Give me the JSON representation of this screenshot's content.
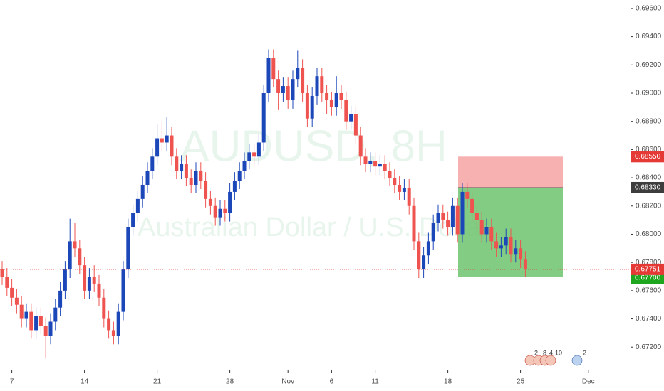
{
  "chart_data": {
    "type": "candlestick",
    "watermark": {
      "symbol": "AUDUSD, 8H",
      "name": "Australian Dollar / U.S. Dollar"
    },
    "up_color": "#1c47b8",
    "down_color": "#ef5350",
    "ylim": [
      0.6704,
      0.6966
    ],
    "yticks": [
      {
        "value": 0.672,
        "label": "0.67200"
      },
      {
        "value": 0.674,
        "label": "0.67400"
      },
      {
        "value": 0.676,
        "label": "0.67600"
      },
      {
        "value": 0.678,
        "label": "0.67800"
      },
      {
        "value": 0.68,
        "label": "0.68000"
      },
      {
        "value": 0.682,
        "label": "0.68200"
      },
      {
        "value": 0.684,
        "label": "0.68400"
      },
      {
        "value": 0.686,
        "label": "0.68600"
      },
      {
        "value": 0.688,
        "label": "0.68800"
      },
      {
        "value": 0.69,
        "label": "0.69000"
      },
      {
        "value": 0.692,
        "label": "0.69200"
      },
      {
        "value": 0.694,
        "label": "0.69400"
      },
      {
        "value": 0.696,
        "label": "0.69600"
      }
    ],
    "categories": [
      null,
      null,
      "7",
      null,
      null,
      null,
      null,
      null,
      null,
      null,
      null,
      null,
      null,
      null,
      null,
      null,
      null,
      "14",
      null,
      null,
      null,
      null,
      null,
      null,
      null,
      null,
      null,
      null,
      null,
      null,
      null,
      null,
      "21",
      null,
      null,
      null,
      null,
      null,
      null,
      null,
      null,
      null,
      null,
      null,
      null,
      null,
      null,
      "28",
      null,
      null,
      null,
      null,
      null,
      null,
      null,
      null,
      null,
      null,
      null,
      "Nov",
      null,
      null,
      null,
      null,
      null,
      null,
      null,
      null,
      "6",
      null,
      null,
      null,
      null,
      null,
      null,
      null,
      null,
      "11",
      null,
      null,
      null,
      null,
      null,
      null,
      null,
      null,
      null,
      null,
      null,
      null,
      null,
      null,
      "18",
      null,
      null,
      null,
      null,
      null,
      null,
      null,
      null,
      null,
      null,
      null,
      null,
      null,
      null,
      "25",
      null,
      null,
      null,
      null,
      null,
      null,
      null,
      null,
      null,
      null,
      null,
      null,
      null,
      "Dec"
    ],
    "ohlc": [
      [
        0.6775,
        0.6781,
        0.6764,
        0.677
      ],
      [
        0.677,
        0.6776,
        0.6756,
        0.6762
      ],
      [
        0.6762,
        0.6768,
        0.6749,
        0.6755
      ],
      [
        0.6755,
        0.6761,
        0.6744,
        0.675
      ],
      [
        0.675,
        0.6756,
        0.6734,
        0.674
      ],
      [
        0.674,
        0.6751,
        0.6734,
        0.6745
      ],
      [
        0.6745,
        0.6751,
        0.6726,
        0.6732
      ],
      [
        0.6732,
        0.6748,
        0.6726,
        0.6742
      ],
      [
        0.6742,
        0.6748,
        0.6729,
        0.6735
      ],
      [
        0.6735,
        0.6741,
        0.6712,
        0.6728
      ],
      [
        0.6728,
        0.6744,
        0.6722,
        0.6738
      ],
      [
        0.6738,
        0.6754,
        0.6732,
        0.6748
      ],
      [
        0.6748,
        0.6766,
        0.6742,
        0.676
      ],
      [
        0.676,
        0.6781,
        0.6754,
        0.6775
      ],
      [
        0.6775,
        0.6811,
        0.6769,
        0.6795
      ],
      [
        0.6795,
        0.6808,
        0.6784,
        0.679
      ],
      [
        0.679,
        0.6796,
        0.6772,
        0.6778
      ],
      [
        0.6778,
        0.6784,
        0.6754,
        0.676
      ],
      [
        0.676,
        0.6776,
        0.6754,
        0.677
      ],
      [
        0.677,
        0.6778,
        0.6759,
        0.6765
      ],
      [
        0.6765,
        0.6771,
        0.6749,
        0.6755
      ],
      [
        0.6755,
        0.6761,
        0.6734,
        0.674
      ],
      [
        0.674,
        0.6746,
        0.6726,
        0.6732
      ],
      [
        0.6732,
        0.6738,
        0.6722,
        0.6728
      ],
      [
        0.6728,
        0.6751,
        0.6722,
        0.6745
      ],
      [
        0.6745,
        0.6781,
        0.6739,
        0.6775
      ],
      [
        0.6775,
        0.6811,
        0.6769,
        0.6805
      ],
      [
        0.6805,
        0.6821,
        0.6799,
        0.6815
      ],
      [
        0.6815,
        0.6831,
        0.6809,
        0.6825
      ],
      [
        0.6825,
        0.6841,
        0.6819,
        0.6835
      ],
      [
        0.6835,
        0.6851,
        0.6829,
        0.6845
      ],
      [
        0.6845,
        0.6861,
        0.6839,
        0.6855
      ],
      [
        0.6855,
        0.6878,
        0.6849,
        0.6868
      ],
      [
        0.6868,
        0.688,
        0.6859,
        0.6865
      ],
      [
        0.6865,
        0.6883,
        0.6859,
        0.687
      ],
      [
        0.687,
        0.6876,
        0.6849,
        0.6855
      ],
      [
        0.6855,
        0.6861,
        0.6839,
        0.6845
      ],
      [
        0.6845,
        0.6856,
        0.6839,
        0.685
      ],
      [
        0.685,
        0.6856,
        0.6834,
        0.684
      ],
      [
        0.684,
        0.6846,
        0.6829,
        0.6835
      ],
      [
        0.6835,
        0.6851,
        0.6829,
        0.6845
      ],
      [
        0.6845,
        0.6851,
        0.6832,
        0.6838
      ],
      [
        0.6838,
        0.6844,
        0.6819,
        0.6825
      ],
      [
        0.6825,
        0.6831,
        0.6814,
        0.682
      ],
      [
        0.682,
        0.6826,
        0.6806,
        0.6812
      ],
      [
        0.6812,
        0.6824,
        0.6806,
        0.6818
      ],
      [
        0.6818,
        0.6824,
        0.6809,
        0.6815
      ],
      [
        0.6815,
        0.6836,
        0.6809,
        0.683
      ],
      [
        0.683,
        0.6844,
        0.6824,
        0.6838
      ],
      [
        0.6838,
        0.6851,
        0.6832,
        0.6845
      ],
      [
        0.6845,
        0.6858,
        0.6839,
        0.6852
      ],
      [
        0.6852,
        0.6864,
        0.6846,
        0.6858
      ],
      [
        0.6858,
        0.6864,
        0.6849,
        0.6855
      ],
      [
        0.6855,
        0.6871,
        0.6849,
        0.6865
      ],
      [
        0.6865,
        0.6906,
        0.6859,
        0.69
      ],
      [
        0.69,
        0.6931,
        0.6894,
        0.6925
      ],
      [
        0.6925,
        0.6931,
        0.6904,
        0.691
      ],
      [
        0.691,
        0.6916,
        0.6888,
        0.69
      ],
      [
        0.69,
        0.6911,
        0.6894,
        0.6905
      ],
      [
        0.6905,
        0.6911,
        0.6889,
        0.6895
      ],
      [
        0.6895,
        0.6916,
        0.6889,
        0.691
      ],
      [
        0.691,
        0.693,
        0.6904,
        0.6918
      ],
      [
        0.6918,
        0.6924,
        0.6894,
        0.69
      ],
      [
        0.69,
        0.6906,
        0.6876,
        0.6882
      ],
      [
        0.6882,
        0.6904,
        0.6876,
        0.6898
      ],
      [
        0.6898,
        0.6918,
        0.6892,
        0.6912
      ],
      [
        0.6912,
        0.6918,
        0.6894,
        0.69
      ],
      [
        0.69,
        0.6906,
        0.6885,
        0.6895
      ],
      [
        0.6895,
        0.6901,
        0.6884,
        0.689
      ],
      [
        0.689,
        0.6912,
        0.6884,
        0.69
      ],
      [
        0.69,
        0.6906,
        0.6889,
        0.6895
      ],
      [
        0.6895,
        0.6901,
        0.6874,
        0.688
      ],
      [
        0.688,
        0.6891,
        0.6874,
        0.6885
      ],
      [
        0.6885,
        0.6891,
        0.6864,
        0.687
      ],
      [
        0.687,
        0.6876,
        0.6849,
        0.6855
      ],
      [
        0.6855,
        0.6861,
        0.6844,
        0.685
      ],
      [
        0.685,
        0.6858,
        0.6844,
        0.6852
      ],
      [
        0.6852,
        0.6858,
        0.6842,
        0.6848
      ],
      [
        0.6848,
        0.6856,
        0.6842,
        0.685
      ],
      [
        0.685,
        0.6856,
        0.6839,
        0.6845
      ],
      [
        0.6845,
        0.6851,
        0.6834,
        0.684
      ],
      [
        0.684,
        0.6846,
        0.6829,
        0.6835
      ],
      [
        0.6835,
        0.6841,
        0.6824,
        0.683
      ],
      [
        0.683,
        0.6839,
        0.6824,
        0.6833
      ],
      [
        0.6833,
        0.6839,
        0.6814,
        0.682
      ],
      [
        0.682,
        0.6826,
        0.6789,
        0.6795
      ],
      [
        0.6795,
        0.6801,
        0.6769,
        0.6775
      ],
      [
        0.6775,
        0.6791,
        0.6769,
        0.6785
      ],
      [
        0.6785,
        0.6801,
        0.6779,
        0.6795
      ],
      [
        0.6795,
        0.6814,
        0.6789,
        0.6808
      ],
      [
        0.6808,
        0.6821,
        0.6802,
        0.6815
      ],
      [
        0.6815,
        0.6821,
        0.6804,
        0.681
      ],
      [
        0.681,
        0.6816,
        0.6799,
        0.6805
      ],
      [
        0.6805,
        0.6826,
        0.6799,
        0.682
      ],
      [
        0.682,
        0.6826,
        0.6794,
        0.68
      ],
      [
        0.68,
        0.6836,
        0.6794,
        0.683
      ],
      [
        0.683,
        0.6836,
        0.6819,
        0.6825
      ],
      [
        0.6825,
        0.6831,
        0.6809,
        0.6815
      ],
      [
        0.6815,
        0.6821,
        0.6804,
        0.681
      ],
      [
        0.681,
        0.6816,
        0.6794,
        0.68
      ],
      [
        0.68,
        0.6811,
        0.6794,
        0.6805
      ],
      [
        0.6805,
        0.6811,
        0.6789,
        0.6795
      ],
      [
        0.6795,
        0.6801,
        0.6784,
        0.679
      ],
      [
        0.679,
        0.6798,
        0.6784,
        0.6792
      ],
      [
        0.6792,
        0.6804,
        0.6786,
        0.6798
      ],
      [
        0.6798,
        0.6804,
        0.678,
        0.6786
      ],
      [
        0.6786,
        0.6796,
        0.678,
        0.679
      ],
      [
        0.679,
        0.6796,
        0.6776,
        0.6782
      ],
      [
        0.6782,
        0.6788,
        0.677,
        0.6775
      ],
      null,
      null,
      null,
      null,
      null,
      null,
      null,
      null,
      null,
      null,
      null,
      null,
      null
    ],
    "position": {
      "stop": {
        "value": 0.6855,
        "label": "0.68550"
      },
      "entry": {
        "value": 0.6833,
        "label": "0.68330"
      },
      "target": {
        "value": 0.677,
        "label": "0.67700"
      }
    },
    "last_price": {
      "value": 0.67751,
      "label": "0.67751"
    },
    "events": [
      "2",
      "8",
      "4",
      "10",
      "2"
    ]
  }
}
